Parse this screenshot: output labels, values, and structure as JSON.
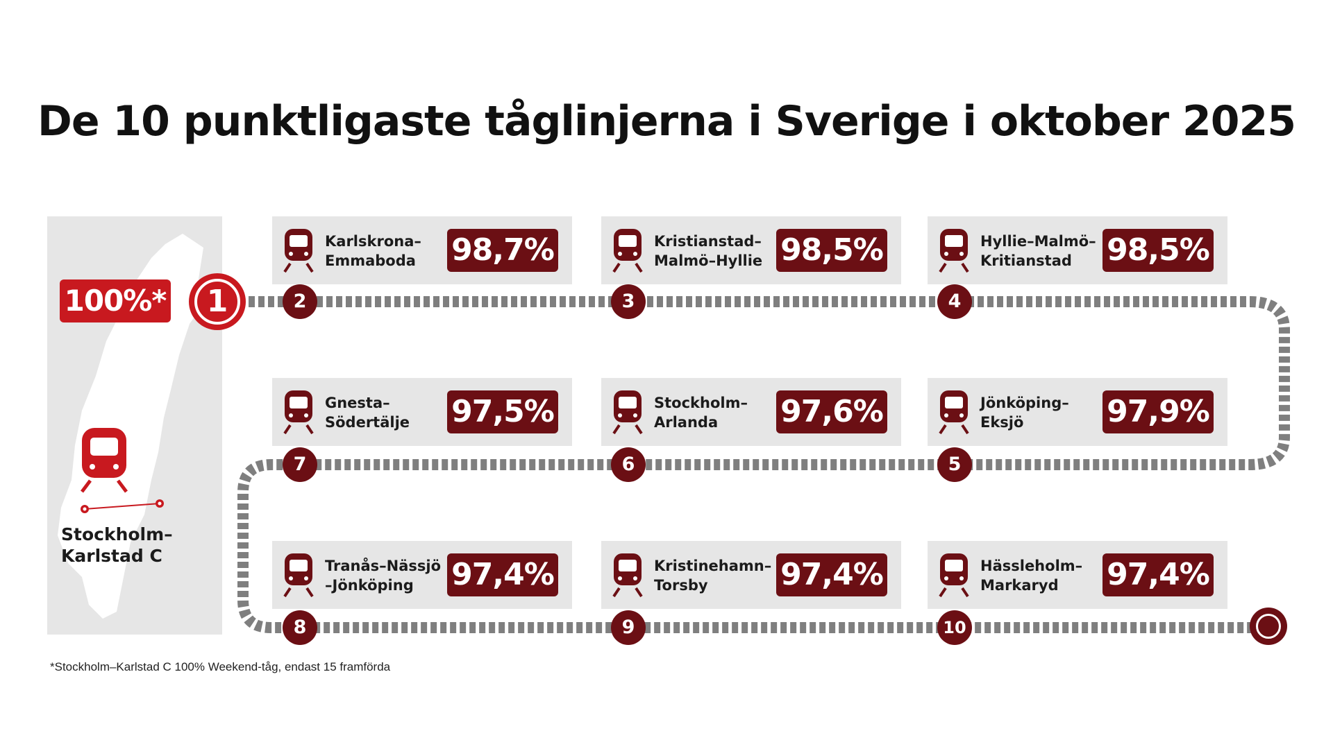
{
  "title": "De 10 punktligaste tåglinjerna i Sverige i oktober 2025",
  "colors": {
    "dark_red": "#6b0f14",
    "bright_red": "#c8191f",
    "card_gray": "#e6e6e6",
    "track_gray": "#7f7f7f"
  },
  "winner": {
    "rank": "1",
    "percent": "100%*",
    "route": "Stockholm–Karlstad C",
    "icon": "train-icon"
  },
  "routes": [
    {
      "rank": "2",
      "name": "Karlskrona–\nEmmaboda",
      "percent": "98,7%"
    },
    {
      "rank": "3",
      "name": "Kristianstad–\nMalmö–Hyllie",
      "percent": "98,5%"
    },
    {
      "rank": "4",
      "name": "Hyllie–Malmö–\nKritianstad",
      "percent": "98,5%"
    },
    {
      "rank": "5",
      "name": "Jönköping–\nEksjö",
      "percent": "97,9%"
    },
    {
      "rank": "6",
      "name": "Stockholm–\nArlanda",
      "percent": "97,6%"
    },
    {
      "rank": "7",
      "name": "Gnesta–\nSödertälje",
      "percent": "97,5%"
    },
    {
      "rank": "8",
      "name": "Tranås–Nässjö\n–Jönköping",
      "percent": "97,4%"
    },
    {
      "rank": "9",
      "name": "Kristinehamn–\nTorsby",
      "percent": "97,4%"
    },
    {
      "rank": "10",
      "name": "Hässleholm–\nMarkaryd",
      "percent": "97,4%"
    }
  ],
  "footnote": "*Stockholm–Karlstad C 100% Weekend-tåg, endast 15 framförda"
}
